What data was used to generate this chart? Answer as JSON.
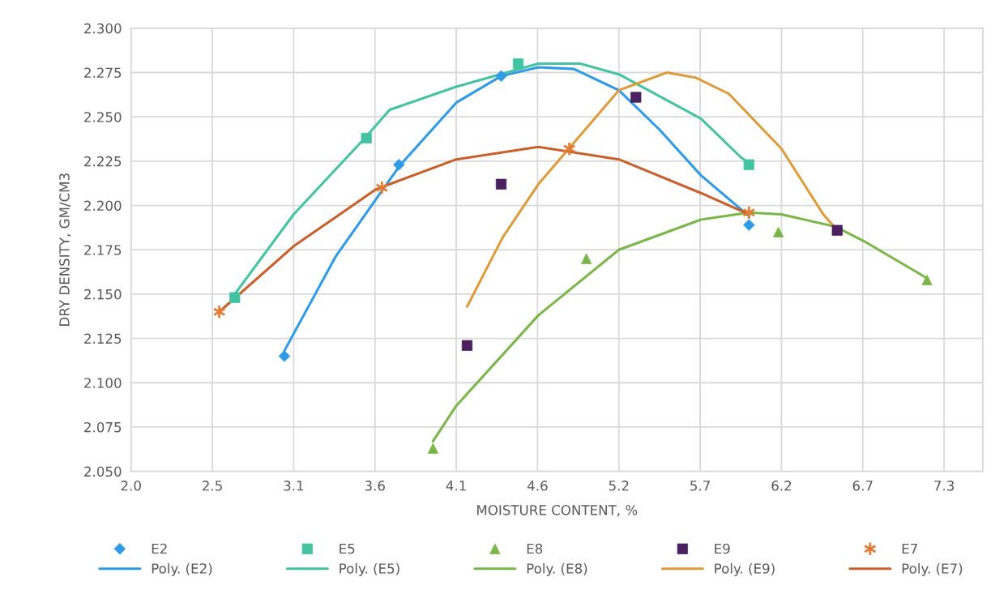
{
  "chart_data": {
    "type": "scatter",
    "xlabel": "MOISTURE CONTENT, %",
    "ylabel": "DRY DENSITY, GM/CM3",
    "xlim": [
      2.0,
      7.5
    ],
    "xticks": [
      {
        "value": 2.0,
        "label": "2.0"
      },
      {
        "value": 2.525,
        "label": "2.5"
      },
      {
        "value": 3.05,
        "label": "3.1"
      },
      {
        "value": 3.575,
        "label": "3.6"
      },
      {
        "value": 4.1,
        "label": "4.1"
      },
      {
        "value": 4.625,
        "label": "4.6"
      },
      {
        "value": 5.15,
        "label": "5.2"
      },
      {
        "value": 5.675,
        "label": "5.7"
      },
      {
        "value": 6.2,
        "label": "6.2"
      },
      {
        "value": 6.725,
        "label": "6.7"
      },
      {
        "value": 7.25,
        "label": "7.3"
      }
    ],
    "ylim": [
      2.05,
      2.3
    ],
    "yticks": [
      {
        "value": 2.05,
        "label": "2.050"
      },
      2.075,
      {
        "value": 2.1,
        "label": "2.100"
      },
      2.125,
      {
        "value": 2.15,
        "label": "2.150"
      },
      2.175,
      {
        "value": 2.2,
        "label": "2.200"
      },
      2.225,
      {
        "value": 2.25,
        "label": "2.250"
      },
      2.275,
      {
        "value": 2.3,
        "label": "2.300"
      }
    ],
    "grid": true,
    "legend": "bottom",
    "series": [
      {
        "name": "E2",
        "marker": "diamond",
        "color": "#2f9ae6",
        "x": [
          2.99,
          3.73,
          4.39,
          5.99
        ],
        "values": [
          2.115,
          2.223,
          2.273,
          2.189
        ]
      },
      {
        "name": "Poly. (E2)",
        "type": "line",
        "color": "#2f9ae6",
        "x": [
          2.99,
          3.32,
          3.61,
          3.74,
          4.1,
          4.39,
          4.63,
          4.86,
          5.15,
          5.41,
          5.68,
          5.99
        ],
        "values": [
          2.118,
          2.171,
          2.207,
          2.223,
          2.258,
          2.273,
          2.278,
          2.277,
          2.265,
          2.243,
          2.217,
          2.194
        ]
      },
      {
        "name": "E5",
        "marker": "square",
        "color": "#43c3a2",
        "x": [
          2.67,
          3.52,
          4.5,
          5.99
        ],
        "values": [
          2.148,
          2.238,
          2.28,
          2.223
        ]
      },
      {
        "name": "Poly. (E5)",
        "type": "line",
        "color": "#43c3a2",
        "x": [
          2.67,
          3.05,
          3.52,
          3.67,
          4.1,
          4.63,
          4.9,
          5.15,
          5.68,
          5.94,
          5.99
        ],
        "values": [
          2.15,
          2.195,
          2.239,
          2.254,
          2.267,
          2.28,
          2.28,
          2.274,
          2.249,
          2.227,
          2.224
        ]
      },
      {
        "name": "E8",
        "marker": "triangle",
        "color": "#7ab648",
        "x": [
          3.95,
          4.94,
          6.18,
          7.14
        ],
        "values": [
          2.063,
          2.17,
          2.185,
          2.158
        ]
      },
      {
        "name": "Poly. (E8)",
        "type": "line",
        "color": "#7ab648",
        "x": [
          3.95,
          4.1,
          4.63,
          5.15,
          5.68,
          5.99,
          6.2,
          6.55,
          6.73,
          7.14
        ],
        "values": [
          2.067,
          2.087,
          2.138,
          2.175,
          2.192,
          2.196,
          2.195,
          2.188,
          2.18,
          2.159
        ]
      },
      {
        "name": "E9",
        "marker": "square",
        "color": "#4a2060",
        "x": [
          4.17,
          4.39,
          5.26,
          6.56
        ],
        "values": [
          2.121,
          2.212,
          2.261,
          2.186
        ]
      },
      {
        "name": "Poly. (E9)",
        "type": "line",
        "color": "#dd9b3c",
        "x": [
          4.17,
          4.4,
          4.63,
          5.15,
          5.46,
          5.65,
          5.86,
          6.2,
          6.47,
          6.56
        ],
        "values": [
          2.143,
          2.182,
          2.212,
          2.265,
          2.275,
          2.272,
          2.263,
          2.232,
          2.195,
          2.186
        ]
      },
      {
        "name": "E7",
        "marker": "cross",
        "color": "#e47c36",
        "x": [
          2.57,
          3.62,
          4.83,
          5.99
        ],
        "values": [
          2.14,
          2.21,
          2.232,
          2.196
        ]
      },
      {
        "name": "Poly. (E7)",
        "type": "line",
        "color": "#c9602b",
        "x": [
          2.57,
          3.05,
          3.58,
          3.67,
          4.1,
          4.63,
          5.15,
          5.68,
          5.99
        ],
        "values": [
          2.14,
          2.177,
          2.209,
          2.212,
          2.226,
          2.233,
          2.226,
          2.207,
          2.195
        ]
      }
    ]
  }
}
